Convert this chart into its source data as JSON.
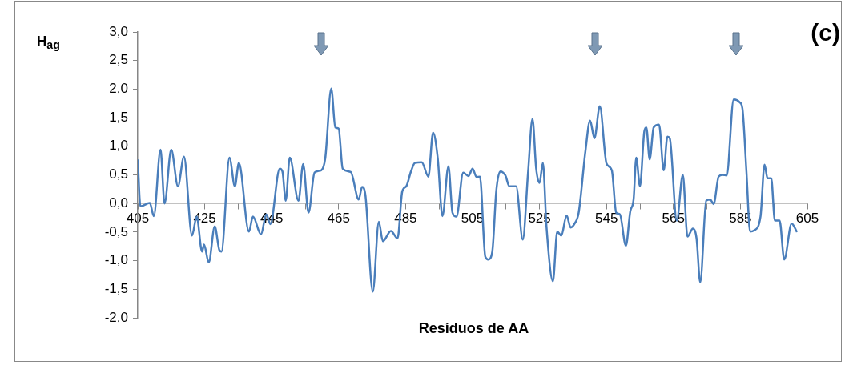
{
  "chart_data": {
    "type": "line",
    "xlabel": "Resíduos de AA",
    "ylabel": "H$_{ag}$",
    "annotations": [
      "(c)"
    ],
    "x": [
      405,
      405.8,
      408.6,
      409.8,
      411.8,
      413,
      415,
      417,
      418.8,
      421.2,
      422.6,
      424.2,
      424.8,
      426.2,
      428,
      429.4,
      430,
      432.4,
      434,
      435.2,
      438.2,
      439.4,
      441.8,
      443.4,
      444.6,
      447.4,
      448.2,
      449.2,
      450.4,
      453,
      454.4,
      456,
      457.8,
      459.8,
      461,
      462.8,
      464,
      465,
      466.2,
      468.6,
      471,
      472,
      473,
      475.2,
      477,
      478.2,
      480.6,
      482.6,
      484,
      485.2,
      486.6,
      487.8,
      489.8,
      491.8,
      493.2,
      494.6,
      496,
      497.8,
      499,
      500.2,
      502.2,
      503.8,
      505,
      506.2,
      507.2,
      508.8,
      509.7,
      510.9,
      512.1,
      513.3,
      514.8,
      516,
      518,
      520,
      521.6,
      522.9,
      524,
      525,
      526,
      527.1,
      529,
      530.3,
      531.5,
      533.1,
      534.3,
      535.5,
      536.7,
      538.7,
      540.1,
      541.4,
      543,
      545,
      546.6,
      547.9,
      549,
      550.8,
      552.1,
      553.1,
      553.9,
      555,
      556.3,
      556.9,
      557.9,
      559.1,
      560.7,
      562.1,
      563.2,
      563.9,
      566,
      567.8,
      569.2,
      570.8,
      571.9,
      573,
      574.8,
      576,
      577,
      578.5,
      579.6,
      580.9,
      583,
      584.8,
      585.6,
      586.8,
      587.9,
      589.1,
      591,
      592.2,
      593.1,
      594.2,
      595.3,
      596.7,
      598.1,
      600.3,
      601.9
    ],
    "series": [
      {
        "color": "#4a7ebb",
        "values": [
          0.77,
          -0.05,
          0.01,
          -0.22,
          0.94,
          0,
          0.94,
          0.3,
          0.82,
          -0.56,
          -0.23,
          -0.84,
          -0.72,
          -1.03,
          -0.4,
          -0.82,
          -0.84,
          0.8,
          0.3,
          0.71,
          -0.49,
          -0.23,
          -0.54,
          -0.19,
          -0.36,
          0.61,
          0.56,
          0.05,
          0.8,
          0.05,
          0.69,
          -0.16,
          0.54,
          0.58,
          0.79,
          2.01,
          1.33,
          1.31,
          0.61,
          0.55,
          0.07,
          0.29,
          0.14,
          -1.54,
          -0.32,
          -0.66,
          -0.48,
          -0.61,
          0.21,
          0.3,
          0.56,
          0.71,
          0.72,
          0.47,
          1.24,
          0.79,
          -0.22,
          0.65,
          -0.16,
          -0.23,
          0.54,
          0.48,
          0.61,
          0.46,
          0.47,
          -0.93,
          -0.98,
          -0.84,
          0.23,
          0.56,
          0.49,
          0.3,
          0.3,
          -0.63,
          0.56,
          1.48,
          0.61,
          0.36,
          0.71,
          -0.42,
          -1.36,
          -0.49,
          -0.56,
          -0.21,
          -0.42,
          -0.35,
          -0.16,
          0.91,
          1.45,
          1.14,
          1.7,
          0.7,
          0.58,
          -0.16,
          -0.19,
          -0.74,
          -0.14,
          0.07,
          0.8,
          0.3,
          1.26,
          1.33,
          0.77,
          1.33,
          1.38,
          0.58,
          1.17,
          1.14,
          -0.3,
          0.5,
          -0.58,
          -0.44,
          -0.61,
          -1.38,
          0.05,
          0.07,
          -0.01,
          0.47,
          0.5,
          0.49,
          1.82,
          1.77,
          1.66,
          0.56,
          -0.49,
          -0.47,
          -0.23,
          0.68,
          0.44,
          0.44,
          -0.3,
          -0.3,
          -0.98,
          -0.35,
          -0.5
        ]
      }
    ],
    "xlim": [
      405,
      605
    ],
    "xticks": [
      405,
      {
        "value": 415,
        "label": null
      },
      425,
      {
        "value": 435,
        "label": null
      },
      445,
      {
        "value": 455,
        "label": null
      },
      465,
      {
        "value": 475,
        "label": null
      },
      485,
      {
        "value": 495,
        "label": null
      },
      505,
      {
        "value": 515,
        "label": null
      },
      525,
      {
        "value": 535,
        "label": null
      },
      545,
      {
        "value": 555,
        "label": null
      },
      565,
      {
        "value": 575,
        "label": null
      },
      585,
      {
        "value": 595,
        "label": null
      },
      605
    ],
    "ylim": [
      -2,
      3
    ],
    "yticks": [
      {
        "value": -2,
        "label": "-2,0"
      },
      {
        "value": -1.5,
        "label": "-1,5"
      },
      {
        "value": -1,
        "label": "-1,0"
      },
      {
        "value": -0.5,
        "label": "-0,5"
      },
      {
        "value": 0,
        "label": "0,0"
      },
      {
        "value": 0.5,
        "label": "0,5"
      },
      {
        "value": 1,
        "label": "1,0"
      },
      {
        "value": 1.5,
        "label": "1,5"
      },
      {
        "value": 2,
        "label": "2,0"
      },
      {
        "value": 2.5,
        "label": "2,5"
      },
      {
        "value": 3,
        "label": "3,0"
      }
    ],
    "grid": false
  }
}
